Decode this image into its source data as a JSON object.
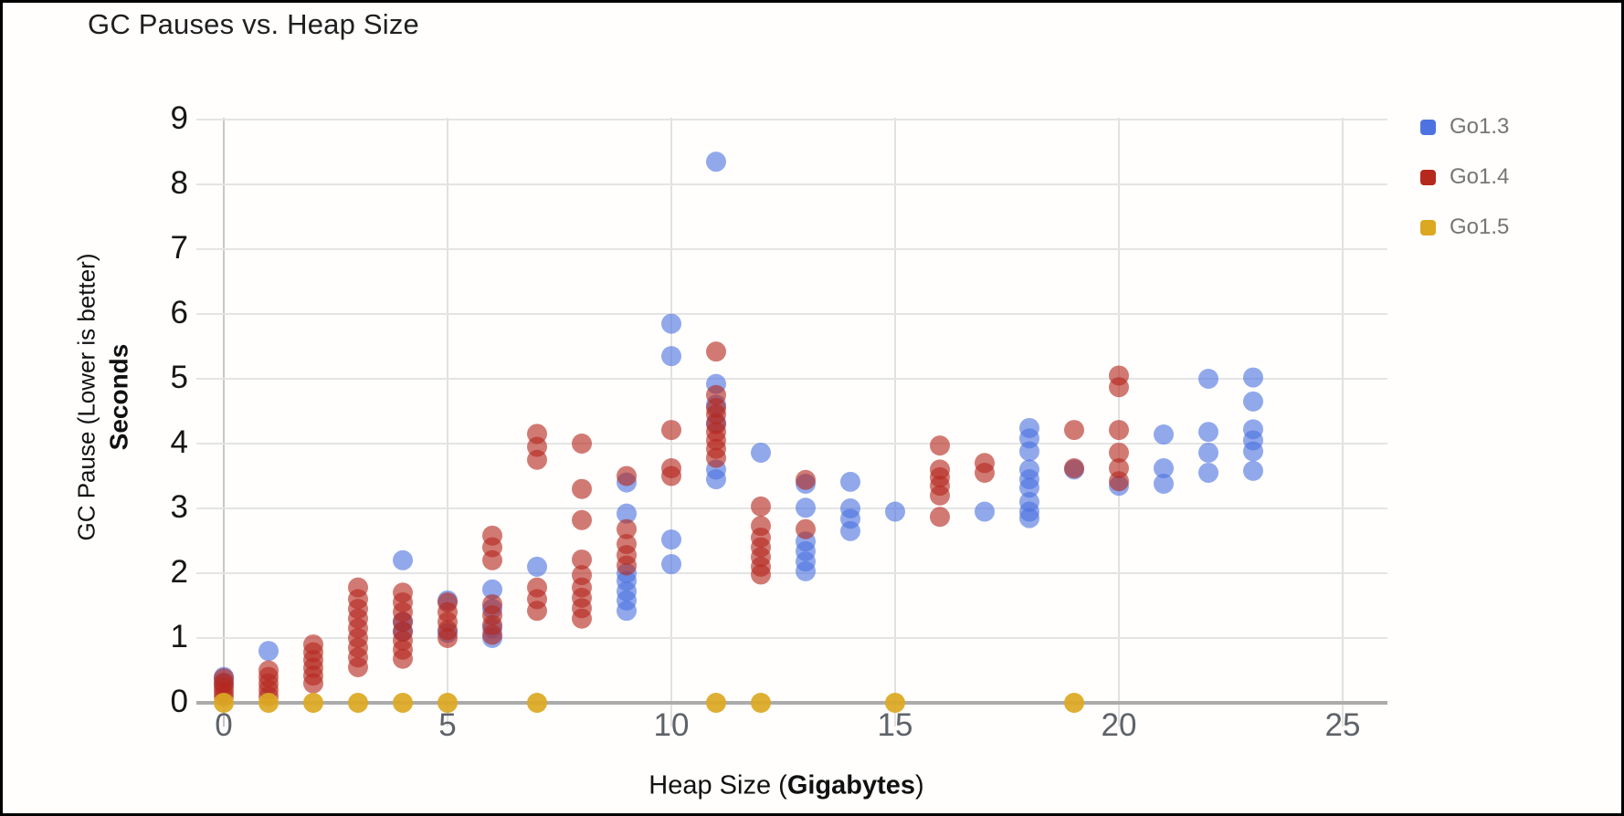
{
  "chart_data": {
    "type": "scatter",
    "title": "GC Pauses vs. Heap Size",
    "xlabel_prefix": "Heap Size (",
    "xlabel_bold": "Gigabytes",
    "xlabel_suffix": ")",
    "ylabel_line1": "GC Pause (Lower is better)",
    "ylabel_line2": "Seconds",
    "xlim": [
      0,
      25
    ],
    "ylim": [
      0,
      9
    ],
    "x_ticks": [
      0,
      5,
      10,
      15,
      20,
      25
    ],
    "y_ticks": [
      0,
      1,
      2,
      3,
      4,
      5,
      6,
      7,
      8,
      9
    ],
    "grid": true,
    "legend_position": "top-right",
    "series": [
      {
        "name": "Go1.3",
        "color": "#4d73e0",
        "points": [
          [
            0,
            0.4
          ],
          [
            0,
            0.3
          ],
          [
            1,
            0.8
          ],
          [
            4,
            2.2
          ],
          [
            4,
            1.25
          ],
          [
            4,
            1.1
          ],
          [
            5,
            1.58
          ],
          [
            5,
            1.08
          ],
          [
            6,
            1.75
          ],
          [
            6,
            1.45
          ],
          [
            6,
            1.15
          ],
          [
            6,
            1.0
          ],
          [
            7,
            2.1
          ],
          [
            9,
            3.4
          ],
          [
            9,
            2.92
          ],
          [
            9,
            2.0
          ],
          [
            9,
            1.88
          ],
          [
            9,
            1.72
          ],
          [
            9,
            1.58
          ],
          [
            9,
            1.42
          ],
          [
            10,
            5.85
          ],
          [
            10,
            5.35
          ],
          [
            10,
            2.52
          ],
          [
            10,
            2.14
          ],
          [
            11,
            8.35
          ],
          [
            11,
            4.92
          ],
          [
            11,
            4.6
          ],
          [
            11,
            4.32
          ],
          [
            11,
            3.6
          ],
          [
            11,
            3.45
          ],
          [
            12,
            3.86
          ],
          [
            13,
            3.38
          ],
          [
            13,
            3.01
          ],
          [
            13,
            2.49
          ],
          [
            13,
            2.34
          ],
          [
            13,
            2.18
          ],
          [
            13,
            2.03
          ],
          [
            14,
            3.41
          ],
          [
            14,
            3.0
          ],
          [
            14,
            2.84
          ],
          [
            14,
            2.65
          ],
          [
            15,
            2.95
          ],
          [
            17,
            2.95
          ],
          [
            18,
            4.24
          ],
          [
            18,
            4.08
          ],
          [
            18,
            3.88
          ],
          [
            18,
            3.6
          ],
          [
            18,
            3.45
          ],
          [
            18,
            3.32
          ],
          [
            18,
            3.1
          ],
          [
            18,
            2.95
          ],
          [
            18,
            2.85
          ],
          [
            19,
            3.6
          ],
          [
            20,
            3.35
          ],
          [
            21,
            4.14
          ],
          [
            21,
            3.62
          ],
          [
            21,
            3.38
          ],
          [
            22,
            5.0
          ],
          [
            22,
            4.18
          ],
          [
            22,
            3.86
          ],
          [
            22,
            3.55
          ],
          [
            23,
            5.02
          ],
          [
            23,
            4.65
          ],
          [
            23,
            4.22
          ],
          [
            23,
            4.05
          ],
          [
            23,
            3.88
          ],
          [
            23,
            3.58
          ]
        ]
      },
      {
        "name": "Go1.4",
        "color": "#b5281e",
        "points": [
          [
            0,
            0.1
          ],
          [
            0,
            0.17
          ],
          [
            0,
            0.24
          ],
          [
            0,
            0.31
          ],
          [
            0,
            0.38
          ],
          [
            1,
            0.1
          ],
          [
            1,
            0.2
          ],
          [
            1,
            0.3
          ],
          [
            1,
            0.4
          ],
          [
            1,
            0.5
          ],
          [
            2,
            0.3
          ],
          [
            2,
            0.42
          ],
          [
            2,
            0.54
          ],
          [
            2,
            0.66
          ],
          [
            2,
            0.78
          ],
          [
            2,
            0.9
          ],
          [
            3,
            0.55
          ],
          [
            3,
            0.7
          ],
          [
            3,
            0.85
          ],
          [
            3,
            1.0
          ],
          [
            3,
            1.15
          ],
          [
            3,
            1.3
          ],
          [
            3,
            1.45
          ],
          [
            3,
            1.6
          ],
          [
            3,
            1.78
          ],
          [
            4,
            0.68
          ],
          [
            4,
            0.82
          ],
          [
            4,
            0.96
          ],
          [
            4,
            1.1
          ],
          [
            4,
            1.25
          ],
          [
            4,
            1.4
          ],
          [
            4,
            1.55
          ],
          [
            4,
            1.7
          ],
          [
            5,
            1.0
          ],
          [
            5,
            1.12
          ],
          [
            5,
            1.25
          ],
          [
            5,
            1.4
          ],
          [
            5,
            1.55
          ],
          [
            6,
            1.05
          ],
          [
            6,
            1.2
          ],
          [
            6,
            1.35
          ],
          [
            6,
            1.52
          ],
          [
            6,
            2.2
          ],
          [
            6,
            2.4
          ],
          [
            6,
            2.58
          ],
          [
            7,
            4.15
          ],
          [
            7,
            3.95
          ],
          [
            7,
            3.75
          ],
          [
            7,
            1.78
          ],
          [
            7,
            1.6
          ],
          [
            7,
            1.42
          ],
          [
            8,
            4.0
          ],
          [
            8,
            3.3
          ],
          [
            8,
            2.82
          ],
          [
            8,
            2.21
          ],
          [
            8,
            1.97
          ],
          [
            8,
            1.78
          ],
          [
            8,
            1.62
          ],
          [
            8,
            1.46
          ],
          [
            8,
            1.3
          ],
          [
            9,
            3.5
          ],
          [
            9,
            2.68
          ],
          [
            9,
            2.45
          ],
          [
            9,
            2.28
          ],
          [
            9,
            2.12
          ],
          [
            10,
            4.21
          ],
          [
            10,
            3.62
          ],
          [
            10,
            3.5
          ],
          [
            11,
            5.42
          ],
          [
            11,
            4.75
          ],
          [
            11,
            4.55
          ],
          [
            11,
            4.45
          ],
          [
            11,
            4.3
          ],
          [
            11,
            4.18
          ],
          [
            11,
            4.05
          ],
          [
            11,
            3.92
          ],
          [
            11,
            3.78
          ],
          [
            12,
            3.03
          ],
          [
            12,
            2.73
          ],
          [
            12,
            2.55
          ],
          [
            12,
            2.4
          ],
          [
            12,
            2.25
          ],
          [
            12,
            2.1
          ],
          [
            12,
            1.98
          ],
          [
            13,
            3.44
          ],
          [
            13,
            2.68
          ],
          [
            16,
            3.97
          ],
          [
            16,
            3.6
          ],
          [
            16,
            3.48
          ],
          [
            16,
            3.35
          ],
          [
            16,
            3.2
          ],
          [
            16,
            2.87
          ],
          [
            17,
            3.7
          ],
          [
            17,
            3.55
          ],
          [
            19,
            4.21
          ],
          [
            19,
            3.62
          ],
          [
            20,
            5.05
          ],
          [
            20,
            4.87
          ],
          [
            20,
            4.21
          ],
          [
            20,
            3.86
          ],
          [
            20,
            3.62
          ],
          [
            20,
            3.42
          ]
        ]
      },
      {
        "name": "Go1.5",
        "color": "#dba821",
        "points": [
          [
            0,
            0
          ],
          [
            1,
            0
          ],
          [
            2,
            0
          ],
          [
            3,
            0
          ],
          [
            4,
            0
          ],
          [
            5,
            0
          ],
          [
            7,
            0
          ],
          [
            11,
            0
          ],
          [
            12,
            0
          ],
          [
            15,
            0
          ],
          [
            19,
            0
          ]
        ]
      }
    ]
  }
}
